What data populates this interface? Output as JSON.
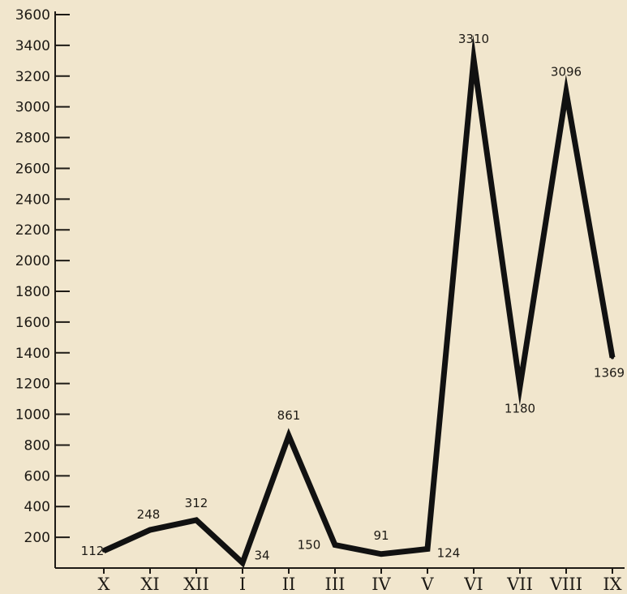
{
  "chart_data": {
    "type": "line",
    "title": "",
    "xlabel": "",
    "ylabel": "",
    "categories": [
      "X",
      "XI",
      "XII",
      "I",
      "II",
      "III",
      "IV",
      "V",
      "VI",
      "VII",
      "VIII",
      "IX"
    ],
    "values": [
      112,
      248,
      312,
      34,
      861,
      150,
      91,
      124,
      3310,
      1180,
      3096,
      1369
    ],
    "data_labels": [
      "112",
      "248",
      "312",
      "34",
      "861",
      "150",
      "91",
      "124",
      "3310",
      "1180",
      "3096",
      "1369"
    ],
    "y_ticks": [
      200,
      400,
      600,
      800,
      1000,
      1200,
      1400,
      1600,
      1800,
      2000,
      2200,
      2400,
      2600,
      2800,
      3000,
      3200,
      3400,
      3600
    ],
    "ylim": [
      0,
      3600
    ],
    "grid": false,
    "legend": "none",
    "line_color": "#111111",
    "axis_color": "#1d1a15",
    "background": "#f1e6cd"
  }
}
